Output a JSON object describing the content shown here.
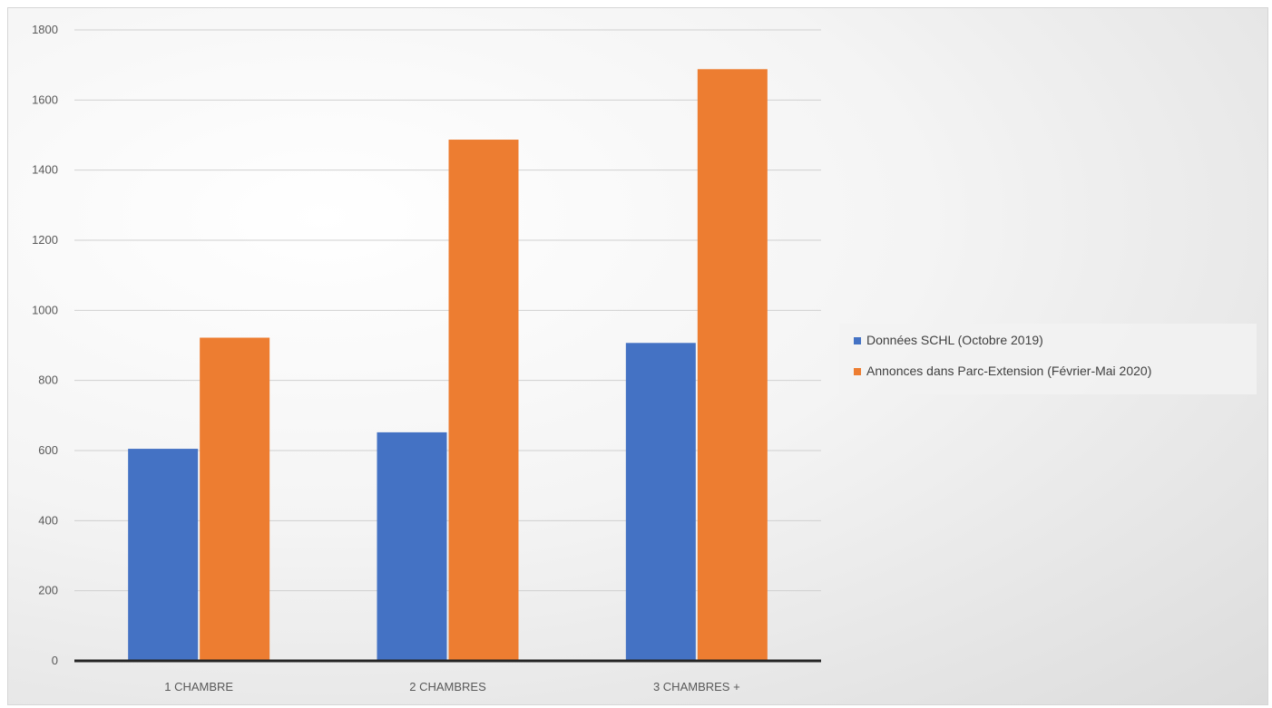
{
  "chart_data": {
    "type": "bar",
    "categories": [
      "1 CHAMBRE",
      "2 CHAMBRES",
      "3 CHAMBRES +"
    ],
    "series": [
      {
        "name": "Données SCHL (Octobre 2019)",
        "values": [
          605,
          652,
          907
        ],
        "color": "#4472c4"
      },
      {
        "name": "Annonces dans Parc-Extension (Février-Mai 2020)",
        "values": [
          922,
          1487,
          1688
        ],
        "color": "#ed7d31"
      }
    ],
    "yticks": [
      "0",
      "200",
      "400",
      "600",
      "800",
      "1000",
      "1200",
      "1400",
      "1600",
      "1800"
    ],
    "ylim": [
      0,
      1800
    ],
    "grid": true,
    "legend_position": "right"
  }
}
